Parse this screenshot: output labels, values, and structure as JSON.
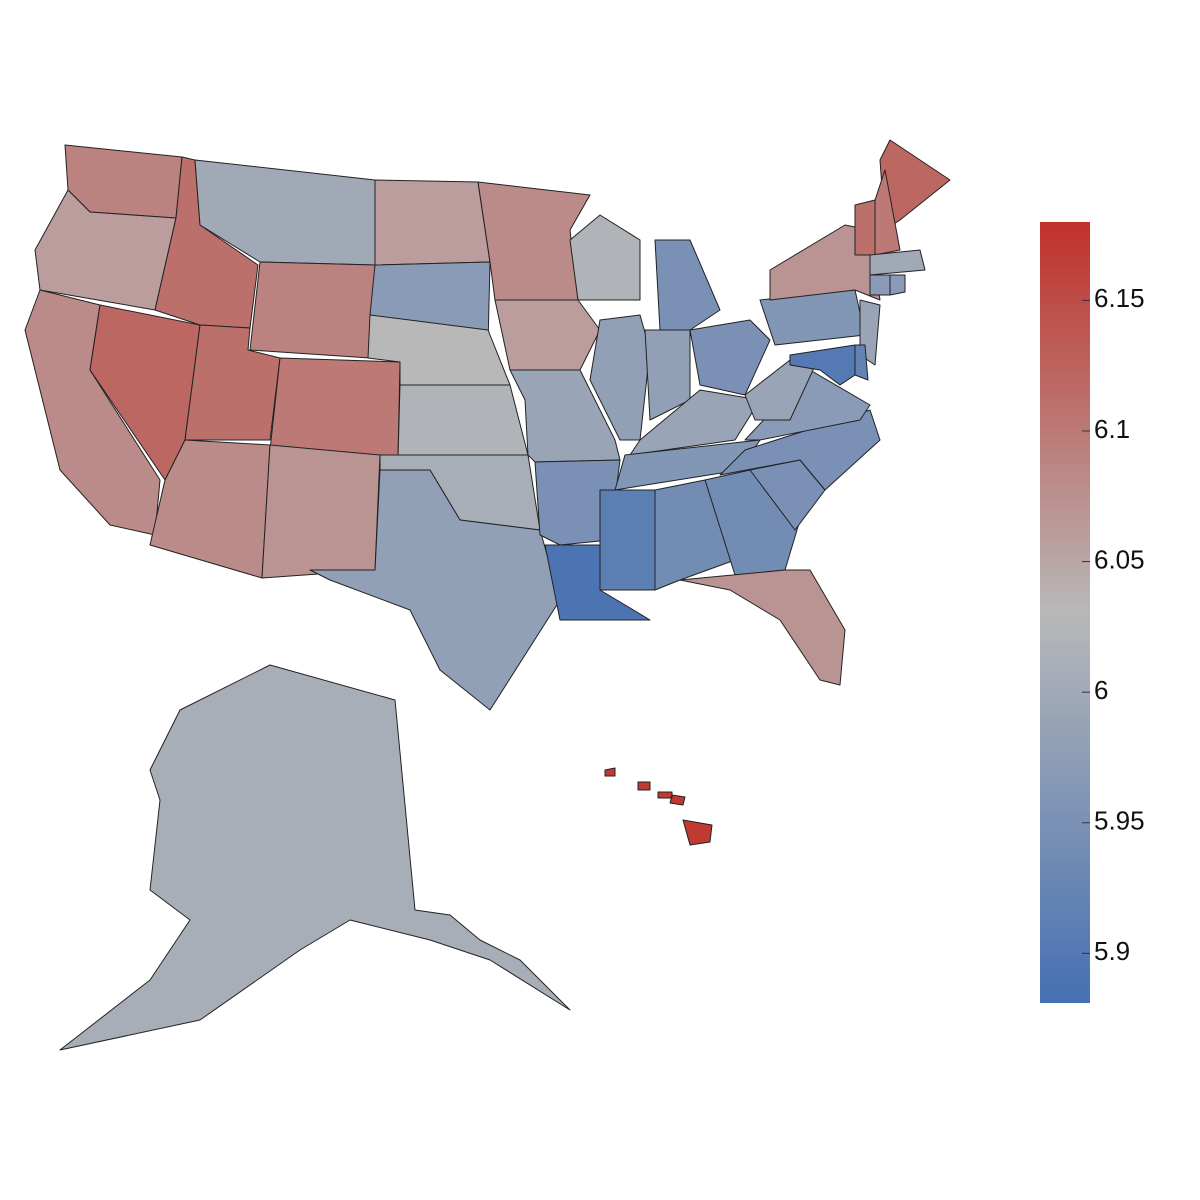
{
  "chart_data": {
    "type": "choropleth",
    "values": [
      6.09,
      6.06,
      6.08,
      6.12,
      6.11,
      6.0,
      6.09,
      6.11,
      6.1,
      6.08,
      6.07,
      6.06,
      5.97,
      6.03,
      6.02,
      6.01,
      5.98,
      6.08,
      6.06,
      5.99,
      5.95,
      5.89,
      6.02,
      5.98,
      5.91,
      5.95,
      5.98,
      5.99,
      5.96,
      5.94,
      5.95,
      5.94,
      6.07,
      5.95,
      5.95,
      5.97,
      5.99,
      5.96,
      6.07,
      6.12,
      6.11,
      6.1,
      6.0,
      5.97,
      5.97,
      5.99,
      5.92,
      5.9,
      6.01,
      6.17
    ],
    "colors": [
      "#4570b2",
      "#b8b8b8",
      "#c0312a"
    ],
    "clim": [
      5.881,
      6.18
    ],
    "cticks": [
      5.9,
      5.95,
      6,
      6.05,
      6.1,
      6.15
    ]
  }
}
